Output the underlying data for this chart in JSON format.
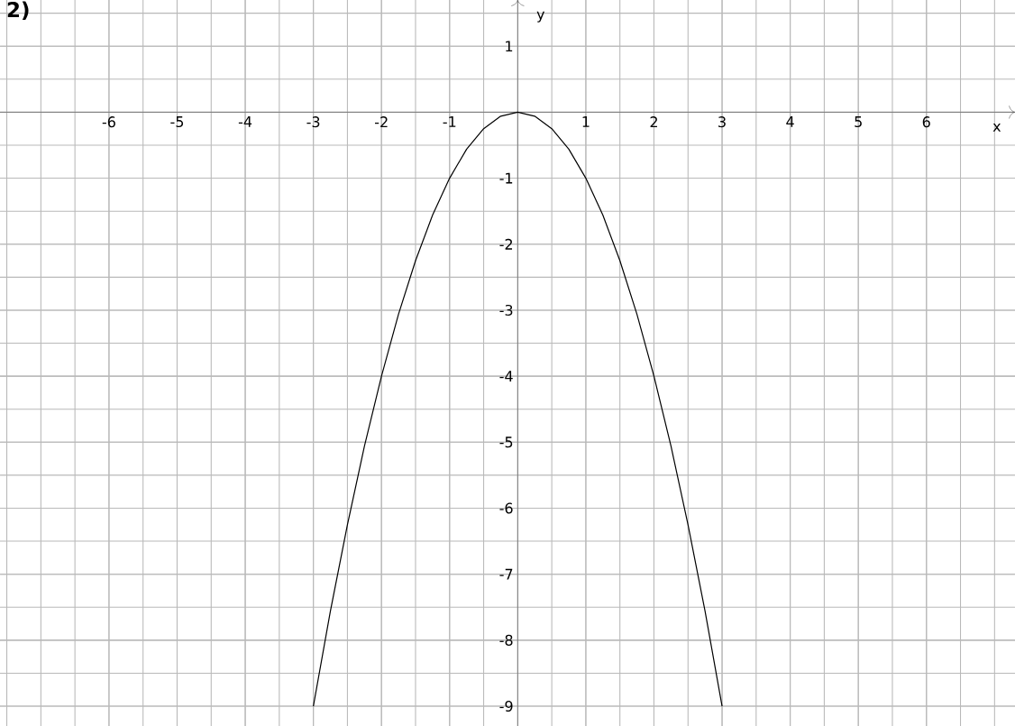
{
  "chart_data": {
    "type": "line",
    "title": "2)",
    "xlabel": "x",
    "ylabel": "y",
    "x": [
      -3,
      -2.75,
      -2.5,
      -2.25,
      -2,
      -1.75,
      -1.5,
      -1.25,
      -1,
      -0.75,
      -0.5,
      -0.25,
      0,
      0.25,
      0.5,
      0.75,
      1,
      1.25,
      1.5,
      1.75,
      2,
      2.25,
      2.5,
      2.75,
      3
    ],
    "series": [
      {
        "color": "#000000",
        "values": [
          -9,
          -7.56,
          -6.25,
          -5.06,
          -4,
          -3.06,
          -2.25,
          -1.56,
          -1,
          -0.56,
          -0.25,
          -0.06,
          0,
          -0.06,
          -0.25,
          -0.56,
          -1,
          -1.56,
          -2.25,
          -3.06,
          -4,
          -5.06,
          -6.25,
          -7.56,
          -9
        ]
      }
    ],
    "xlim": [
      -7.6,
      7.3
    ],
    "ylim": [
      -9.3,
      1.7
    ],
    "xticks": [
      -6,
      -5,
      -4,
      -3,
      -2,
      -1,
      1,
      2,
      3,
      4,
      5,
      6
    ],
    "yticks": [
      -9,
      -8,
      -7,
      -6,
      -5,
      -4,
      -3,
      -2,
      -1,
      1
    ],
    "grid": true,
    "marker": "none",
    "line_style": "solid"
  }
}
